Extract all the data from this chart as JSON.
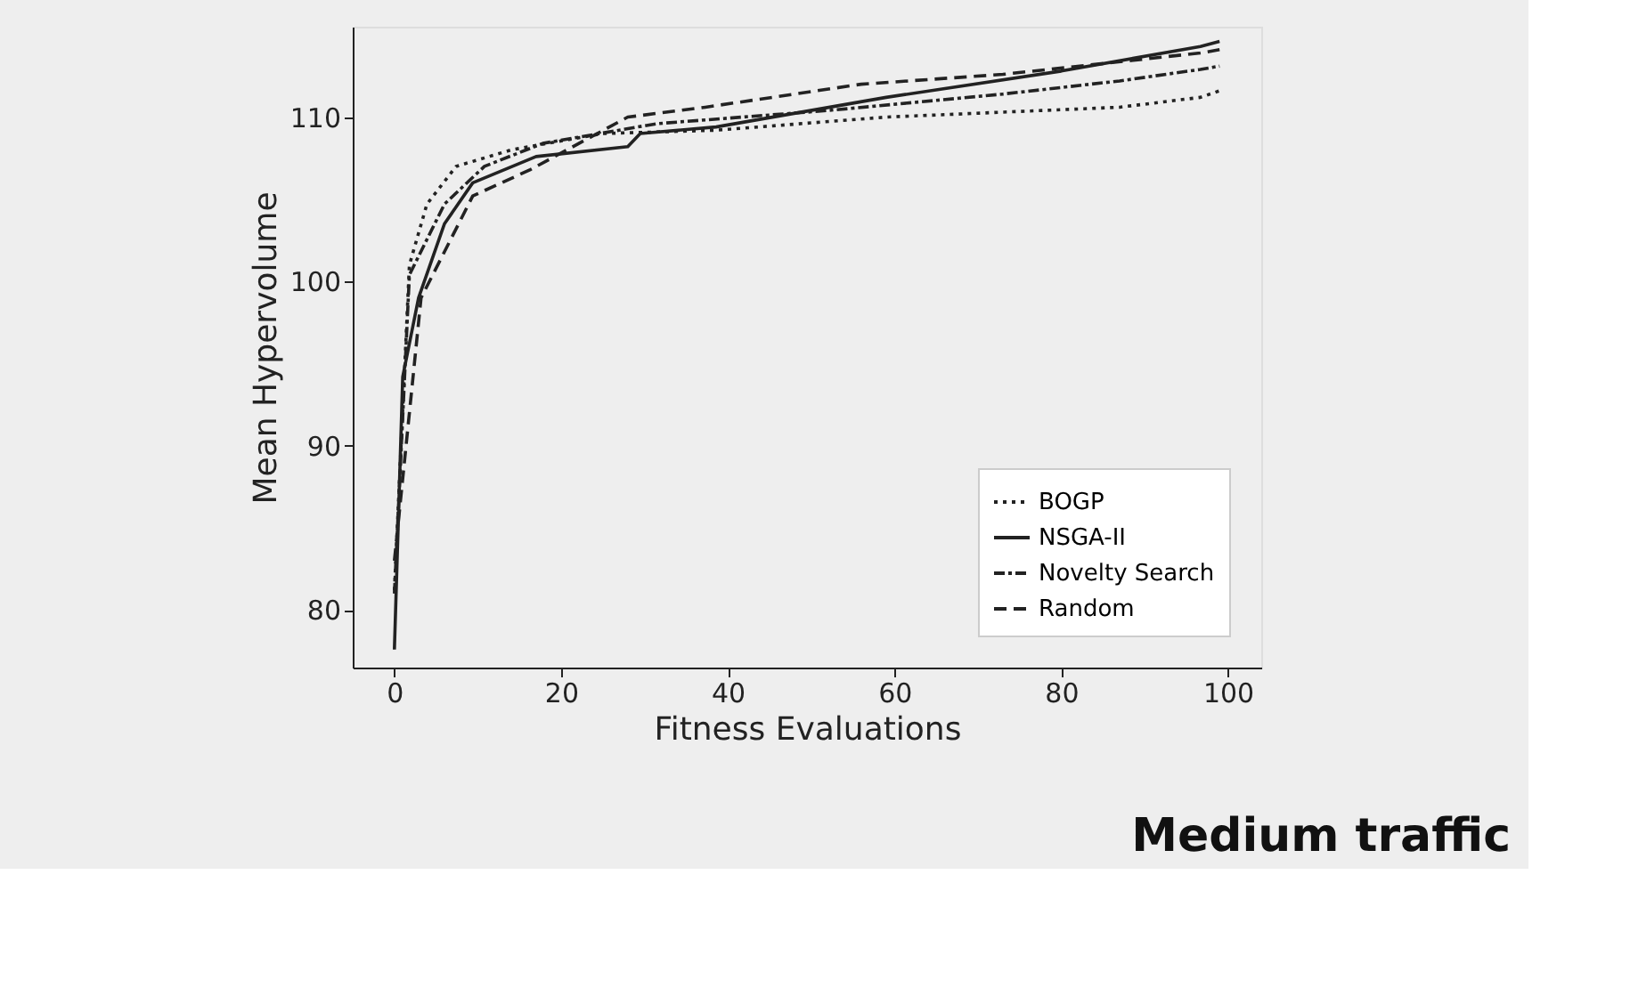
{
  "chart_data": {
    "type": "line",
    "xlabel": "Fitness Evaluations",
    "ylabel": "Mean Hypervolume",
    "xlim": [
      -5,
      104
    ],
    "ylim": [
      76.5,
      115.5
    ],
    "xticks": [
      0,
      20,
      40,
      60,
      80,
      100
    ],
    "yticks": [
      80,
      90,
      100,
      110
    ],
    "grid": false,
    "legend": "bottom right",
    "series": [
      {
        "name": "BOGP",
        "color": "#222222",
        "line_style": "dotted",
        "x": [
          0,
          1.8,
          3.9,
          7.4,
          14,
          25,
          38.6,
          59,
          87,
          96.7,
          99
        ],
        "values": [
          81.2,
          101,
          104.7,
          107,
          108,
          109,
          109.2,
          110,
          110.6,
          111.2,
          111.6
        ]
      },
      {
        "name": "NSGA-II",
        "color": "#222222",
        "line_style": "solid",
        "x": [
          0,
          1,
          2.9,
          6,
          9.4,
          17,
          28,
          29.5,
          38.6,
          59,
          80,
          96.7,
          99
        ],
        "values": [
          77.6,
          94.2,
          99,
          103.5,
          106,
          107.6,
          108.2,
          109,
          109.4,
          111.2,
          112.8,
          114.3,
          114.6
        ]
      },
      {
        "name": "Novelty Search",
        "color": "#222222",
        "line_style": "dashdot",
        "x": [
          0,
          1.8,
          6,
          10.8,
          17.8,
          31.5,
          52,
          73,
          87,
          96.7,
          99
        ],
        "values": [
          81,
          100.4,
          104.7,
          107,
          108.4,
          109.6,
          110.4,
          111.4,
          112.2,
          112.9,
          113.1
        ]
      },
      {
        "name": "Random",
        "color": "#222222",
        "line_style": "dashed",
        "x": [
          0,
          3.2,
          9.4,
          16.3,
          28,
          37.3,
          56,
          73,
          96.7,
          99
        ],
        "values": [
          83,
          99,
          105.2,
          106.8,
          110,
          110.6,
          112,
          112.6,
          113.9,
          114.1
        ]
      }
    ],
    "annotations": [
      "Medium traffic"
    ]
  }
}
